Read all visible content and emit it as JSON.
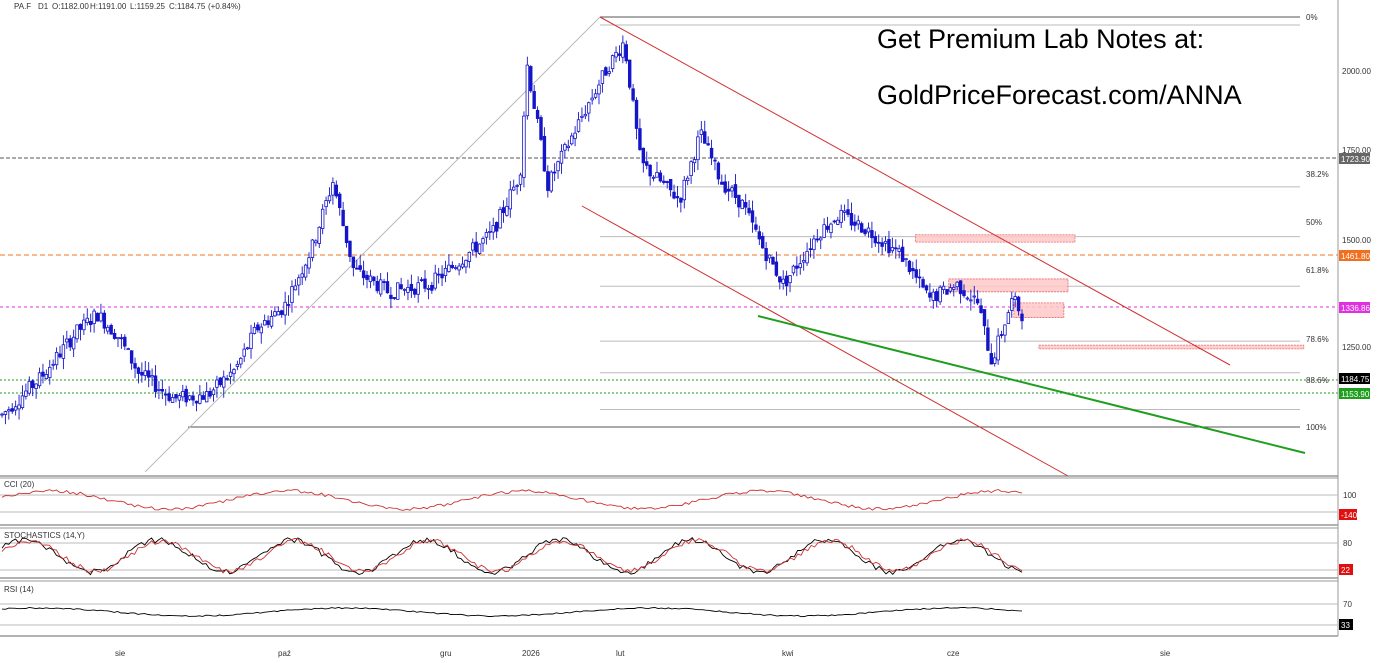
{
  "header": {
    "symbol": "PA.F",
    "timeframe": "D1",
    "open": "O:1182.00",
    "high": "H:1191.00",
    "low": "L:1159.25",
    "close": "C:1184.75",
    "change": "(+0.84%)"
  },
  "promo": {
    "line1": "Get Premium Lab Notes at:",
    "line2": "GoldPriceForecast.com/ANNA"
  },
  "colors": {
    "bull": "#ffffff",
    "bear": "#1414c8",
    "channel": "#d03030",
    "trend_support": "#1f9e1f",
    "zone_fill": "#ffc8c8",
    "zone_stroke": "#e05050",
    "last_price": "#000000",
    "green_level": "#1f9e1f",
    "orange_level": "#f07020",
    "magenta_level": "#e030e0",
    "gray_level": "#555555"
  },
  "chart_data": {
    "type": "candlestick",
    "y_axis": {
      "ticks": [
        "2000.00",
        "1750.00",
        "1500.00",
        "1250.00"
      ],
      "ylim": [
        790,
        2135
      ]
    },
    "x_axis_labels": [
      "sie",
      "paź",
      "gru",
      "2026",
      "lut",
      "kwi",
      "cze",
      "sie"
    ],
    "price_tags": [
      {
        "label": "1723.90",
        "value": 1723.9,
        "style": "gray"
      },
      {
        "label": "1461.80",
        "value": 1461.8,
        "style": "orange"
      },
      {
        "label": "1336.86",
        "value": 1336.86,
        "style": "magenta"
      },
      {
        "label": "1184.75",
        "value": 1184.75,
        "style": "last"
      },
      {
        "label": "1153.90",
        "value": 1153.9,
        "style": "green"
      }
    ],
    "fibonacci": [
      {
        "label": "0%",
        "value": 2125
      },
      {
        "label": "38.2%",
        "value": 1685
      },
      {
        "label": "50%",
        "value": 1550
      },
      {
        "label": "61.8%",
        "value": 1415
      },
      {
        "label": "78.6%",
        "value": 1266
      },
      {
        "label": "88.6%",
        "value": 1180
      },
      {
        "label": "100%",
        "value": 1080
      }
    ],
    "resistance_zones": [
      {
        "x0": 0.66,
        "x1": 0.775,
        "y0": 1535,
        "y1": 1555
      },
      {
        "x0": 0.684,
        "x1": 0.77,
        "y0": 1400,
        "y1": 1435
      },
      {
        "x0": 0.731,
        "x1": 0.767,
        "y0": 1330,
        "y1": 1370
      },
      {
        "x0": 0.749,
        "x1": 0.94,
        "y0": 1245,
        "y1": 1255
      }
    ],
    "candles_seed": 7,
    "candle_path": [
      [
        0.0,
        1060
      ],
      [
        0.03,
        1170
      ],
      [
        0.055,
        1290
      ],
      [
        0.07,
        1340
      ],
      [
        0.085,
        1280
      ],
      [
        0.1,
        1180
      ],
      [
        0.125,
        1110
      ],
      [
        0.15,
        1120
      ],
      [
        0.17,
        1190
      ],
      [
        0.185,
        1300
      ],
      [
        0.205,
        1360
      ],
      [
        0.225,
        1520
      ],
      [
        0.24,
        1700
      ],
      [
        0.255,
        1460
      ],
      [
        0.28,
        1400
      ],
      [
        0.31,
        1420
      ],
      [
        0.33,
        1480
      ],
      [
        0.355,
        1560
      ],
      [
        0.375,
        1720
      ],
      [
        0.38,
        2020
      ],
      [
        0.395,
        1690
      ],
      [
        0.42,
        1880
      ],
      [
        0.438,
        2010
      ],
      [
        0.45,
        2080
      ],
      [
        0.462,
        1750
      ],
      [
        0.49,
        1650
      ],
      [
        0.505,
        1830
      ],
      [
        0.52,
        1700
      ],
      [
        0.535,
        1640
      ],
      [
        0.55,
        1520
      ],
      [
        0.565,
        1420
      ],
      [
        0.59,
        1560
      ],
      [
        0.605,
        1610
      ],
      [
        0.625,
        1570
      ],
      [
        0.65,
        1500
      ],
      [
        0.67,
        1380
      ],
      [
        0.69,
        1420
      ],
      [
        0.705,
        1370
      ],
      [
        0.715,
        1210
      ],
      [
        0.73,
        1380
      ],
      [
        0.742,
        1310
      ],
      [
        0.752,
        1175
      ]
    ],
    "cci": {
      "label": "CCI (20)",
      "levels": [
        "100"
      ],
      "last": "-140"
    },
    "stochastics": {
      "label": "STOCHASTICS (14,Y)",
      "levels": [
        "80"
      ],
      "last": "22"
    },
    "rsi": {
      "label": "RSI (14)",
      "levels": [
        "70"
      ],
      "last": "33"
    }
  }
}
